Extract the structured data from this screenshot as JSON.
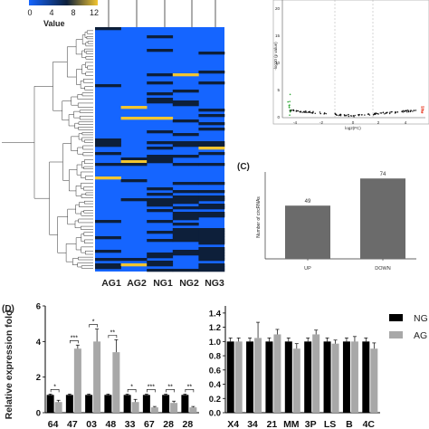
{
  "colors": {
    "heat_low": "#1565ff",
    "heat_mid": "#0d1f3a",
    "heat_high": "#f2c530",
    "bar_gray": "#6b6b6b",
    "series_NG": "#000000",
    "series_AG": "#a8a8a8",
    "volcano_up": "#e8402a",
    "volcano_down": "#2fa836"
  },
  "heatmap": {
    "legend_ticks": [
      "0",
      "4",
      "8",
      "12"
    ],
    "legend_title": "Value",
    "columns": [
      "AG1",
      "AG2",
      "NG1",
      "NG2",
      "NG3"
    ]
  },
  "volcano": {
    "ylabel": "-log10 (p value)",
    "xlabel": "log2(FC)",
    "y_ticks": [
      "0",
      "5",
      "10",
      "15",
      "20"
    ],
    "x_ticks": [
      "-4",
      "-2",
      "0",
      "2",
      "4"
    ]
  },
  "panel_labels": {
    "c": "(C)",
    "d": "(D)"
  },
  "chart_data": [
    {
      "type": "bar",
      "panel": "(C)",
      "categories": [
        "UP",
        "DOWN"
      ],
      "values": [
        49,
        74
      ],
      "data_labels": [
        "49",
        "74"
      ],
      "ylabel": "Number of circRNAs",
      "ylim": [
        0,
        80
      ]
    },
    {
      "type": "bar",
      "panel": "(D) left",
      "categories": [
        "64",
        "47",
        "03",
        "48",
        "33",
        "67",
        "28",
        "28"
      ],
      "ylabel": "Relative expression fold",
      "ylim": [
        0,
        6
      ],
      "y_ticks": [
        "0",
        "2",
        "4",
        "6"
      ],
      "series": [
        {
          "name": "NG",
          "values": [
            1,
            1,
            1,
            1,
            1,
            1,
            1,
            1
          ],
          "errors": [
            0.05,
            0.05,
            0.05,
            0.05,
            0.05,
            0.05,
            0.05,
            0.05
          ]
        },
        {
          "name": "AG",
          "values": [
            0.6,
            3.6,
            4.0,
            3.4,
            0.6,
            0.3,
            0.55,
            0.3
          ],
          "errors": [
            0.1,
            0.2,
            0.7,
            0.7,
            0.15,
            0.05,
            0.1,
            0.05
          ]
        }
      ],
      "significance": [
        "*",
        "***",
        "*",
        "**",
        "*",
        "***",
        "**",
        "**"
      ]
    },
    {
      "type": "bar",
      "panel": "(D) right",
      "categories": [
        "X4",
        "34",
        "21",
        "MM",
        "3P",
        "LS",
        "B",
        "4C"
      ],
      "ylim": [
        0,
        1.5
      ],
      "y_ticks": [
        "0.0",
        "0.2",
        "0.4",
        "0.6",
        "0.8",
        "1.0",
        "1.2",
        "1.4"
      ],
      "legend": [
        "NG",
        "AG"
      ],
      "series": [
        {
          "name": "NG",
          "values": [
            1,
            1,
            1,
            1,
            1,
            1,
            1,
            1
          ],
          "errors": [
            0.05,
            0.05,
            0.05,
            0.05,
            0.05,
            0.05,
            0.05,
            0.05
          ]
        },
        {
          "name": "AG",
          "values": [
            1.0,
            1.05,
            1.1,
            0.9,
            1.1,
            0.97,
            1.0,
            0.9
          ],
          "errors": [
            0.05,
            0.22,
            0.07,
            0.07,
            0.06,
            0.05,
            0.07,
            0.08
          ]
        }
      ]
    }
  ]
}
